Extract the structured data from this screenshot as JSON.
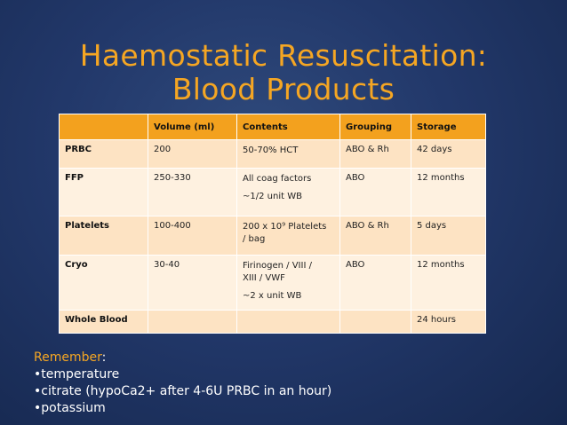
{
  "title": {
    "line1": "Haemostatic Resuscitation:",
    "line2": "Blood Products"
  },
  "table": {
    "headers": [
      "",
      "Volume (ml)",
      "Contents",
      "Grouping",
      "Storage"
    ],
    "rows": [
      {
        "product": "PRBC",
        "volume": "200",
        "contents": [
          "50-70% HCT"
        ],
        "grouping": "ABO & Rh",
        "storage": "42 days"
      },
      {
        "product": "FFP",
        "volume": "250-330",
        "contents": [
          "All coag factors",
          "",
          "~1/2 unit WB"
        ],
        "grouping": "ABO",
        "storage": "12 months"
      },
      {
        "product": "Platelets",
        "volume": "100-400",
        "contents": [
          "200 x 10⁹ Platelets",
          "/ bag"
        ],
        "grouping": "ABO & Rh",
        "storage": "5 days"
      },
      {
        "product": "Cryo",
        "volume": "30-40",
        "contents": [
          "Firinogen / VIII /",
          "XIII / VWF",
          "",
          "~2 x unit WB"
        ],
        "grouping": "ABO",
        "storage": "12 months"
      },
      {
        "product": "Whole Blood",
        "volume": "",
        "contents": [
          ""
        ],
        "grouping": "",
        "storage": "24 hours"
      }
    ]
  },
  "remember": {
    "heading": "Remember",
    "heading_suffix": ":",
    "items": [
      "•temperature",
      "•citrate (hypoCa2+ after 4-6U PRBC in an hour)",
      "•potassium"
    ]
  },
  "colors": {
    "accent": "#f5a623",
    "header_bg": "#f3a11e",
    "row_light": "#fde3c3",
    "row_lighter": "#fef1e0",
    "background": "#22386a"
  }
}
